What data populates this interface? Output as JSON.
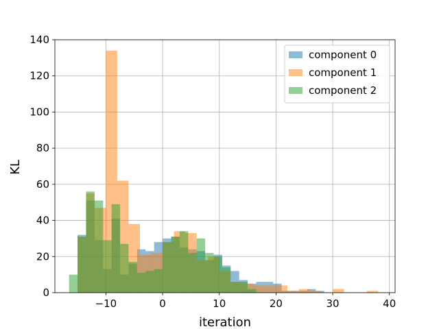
{
  "chart_data": {
    "type": "histogram",
    "title": "",
    "xlabel": "iteration",
    "ylabel": "KL",
    "xlim": [
      -19,
      41
    ],
    "ylim": [
      0,
      140
    ],
    "xticks": [
      -10,
      0,
      10,
      20,
      30,
      40
    ],
    "yticks": [
      0,
      20,
      40,
      60,
      80,
      100,
      120,
      140
    ],
    "xtick_labels": [
      "−10",
      "0",
      "10",
      "20",
      "30",
      "40"
    ],
    "ytick_labels": [
      "0",
      "20",
      "40",
      "60",
      "80",
      "100",
      "120",
      "140"
    ],
    "grid": true,
    "legend_position": "top-right",
    "bar_alpha": 0.5,
    "series": [
      {
        "name": "component 0",
        "color": "#1f77b4",
        "bins": [
          [
            -15.0,
            -13.5,
            32
          ],
          [
            -13.5,
            -12.0,
            51
          ],
          [
            -12.0,
            -10.5,
            29
          ],
          [
            -10.5,
            -9.0,
            13
          ],
          [
            -9.0,
            -7.5,
            41
          ],
          [
            -7.5,
            -6.0,
            10
          ],
          [
            -6.0,
            -4.5,
            16
          ],
          [
            -4.5,
            -3.0,
            24
          ],
          [
            -3.0,
            -1.5,
            23
          ],
          [
            -1.5,
            0.0,
            28
          ],
          [
            0.0,
            1.5,
            30
          ],
          [
            1.5,
            3.0,
            31
          ],
          [
            3.0,
            4.5,
            25
          ],
          [
            4.5,
            6.0,
            24
          ],
          [
            6.0,
            7.5,
            23
          ],
          [
            7.5,
            9.0,
            18
          ],
          [
            9.0,
            10.5,
            21
          ],
          [
            10.5,
            12.0,
            15
          ],
          [
            12.0,
            13.5,
            12
          ],
          [
            13.5,
            15.0,
            7
          ],
          [
            15.0,
            16.5,
            5
          ],
          [
            16.5,
            18.0,
            6
          ],
          [
            18.0,
            19.5,
            6
          ],
          [
            19.5,
            21.0,
            5
          ],
          [
            21.0,
            22.5,
            1
          ],
          [
            22.5,
            24.0,
            1
          ],
          [
            24.0,
            25.5,
            1
          ],
          [
            25.5,
            27.0,
            2
          ],
          [
            27.0,
            28.5,
            1
          ]
        ]
      },
      {
        "name": "component 1",
        "color": "#ff7f0e",
        "bins": [
          [
            -15.0,
            -13.5,
            31
          ],
          [
            -13.5,
            -12.0,
            55
          ],
          [
            -12.0,
            -10.0,
            47
          ],
          [
            -10.0,
            -8.0,
            134
          ],
          [
            -8.0,
            -6.0,
            62
          ],
          [
            -6.0,
            -4.0,
            38
          ],
          [
            -4.0,
            -2.0,
            21
          ],
          [
            -2.0,
            0.0,
            22
          ],
          [
            0.0,
            2.0,
            28
          ],
          [
            2.0,
            4.0,
            34
          ],
          [
            4.0,
            6.0,
            33
          ],
          [
            6.0,
            8.0,
            18
          ],
          [
            8.0,
            10.0,
            20
          ],
          [
            10.0,
            12.0,
            12
          ],
          [
            12.0,
            14.0,
            6
          ],
          [
            14.0,
            16.0,
            5
          ],
          [
            16.0,
            18.0,
            4
          ],
          [
            18.0,
            20.0,
            4
          ],
          [
            20.0,
            22.0,
            4
          ],
          [
            22.0,
            24.0,
            1
          ],
          [
            24.0,
            26.0,
            2
          ],
          [
            26.0,
            28.0,
            1
          ],
          [
            28.0,
            30.0,
            0
          ],
          [
            30.0,
            32.0,
            2
          ],
          [
            32.0,
            34.0,
            0
          ],
          [
            34.0,
            36.0,
            0
          ],
          [
            36.0,
            38.0,
            1
          ]
        ]
      },
      {
        "name": "component 2",
        "color": "#2ca02c",
        "bins": [
          [
            -16.5,
            -15.0,
            10
          ],
          [
            -15.0,
            -13.5,
            31
          ],
          [
            -13.5,
            -12.0,
            56
          ],
          [
            -12.0,
            -10.5,
            51
          ],
          [
            -10.5,
            -9.0,
            29
          ],
          [
            -9.0,
            -7.5,
            49
          ],
          [
            -7.5,
            -6.0,
            27
          ],
          [
            -6.0,
            -4.5,
            17
          ],
          [
            -4.5,
            -3.0,
            11
          ],
          [
            -3.0,
            -1.5,
            12
          ],
          [
            -1.5,
            0.0,
            13
          ],
          [
            0.0,
            1.5,
            28
          ],
          [
            1.5,
            3.0,
            31
          ],
          [
            3.0,
            4.5,
            34
          ],
          [
            4.5,
            6.0,
            22
          ],
          [
            6.0,
            7.5,
            30
          ],
          [
            7.5,
            9.0,
            22
          ],
          [
            9.0,
            10.5,
            20
          ],
          [
            10.5,
            12.0,
            14
          ],
          [
            12.0,
            13.5,
            6
          ],
          [
            13.5,
            15.0,
            6
          ],
          [
            15.0,
            16.5,
            2
          ]
        ]
      }
    ]
  }
}
